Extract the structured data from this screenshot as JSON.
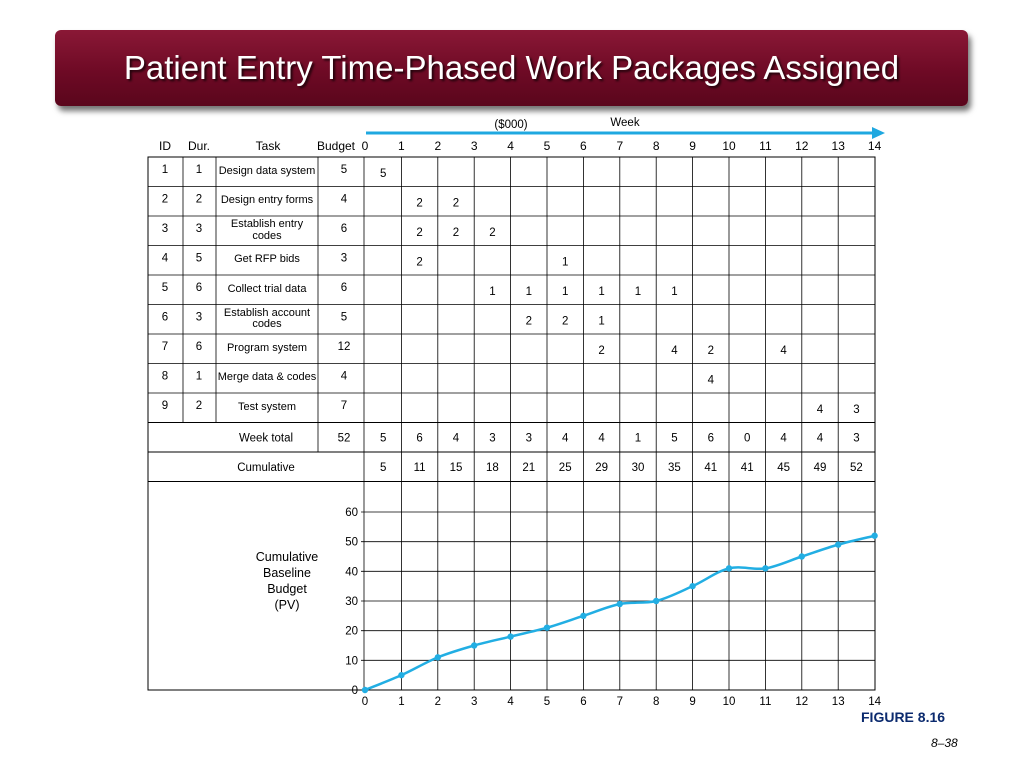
{
  "title": "Patient Entry Time-Phased Work Packages Assigned",
  "units_label": "($000)",
  "week_label": "Week",
  "headers": {
    "id": "ID",
    "dur": "Dur.",
    "task": "Task",
    "budget": "Budget"
  },
  "weeks": [
    "0",
    "1",
    "2",
    "3",
    "4",
    "5",
    "6",
    "7",
    "8",
    "9",
    "10",
    "11",
    "12",
    "13",
    "14"
  ],
  "tasks": [
    {
      "id": "1",
      "dur": "1",
      "task": "Design data system",
      "budget": "5",
      "alloc": {
        "1": "5"
      }
    },
    {
      "id": "2",
      "dur": "2",
      "task": "Design entry forms",
      "budget": "4",
      "alloc": {
        "2": "2",
        "3": "2"
      }
    },
    {
      "id": "3",
      "dur": "3",
      "task": "Establish entry codes",
      "budget": "6",
      "alloc": {
        "2": "2",
        "3": "2",
        "4": "2"
      }
    },
    {
      "id": "4",
      "dur": "5",
      "task": "Get RFP bids",
      "budget": "3",
      "alloc": {
        "2": "2",
        "6": "1"
      }
    },
    {
      "id": "5",
      "dur": "6",
      "task": "Collect trial data",
      "budget": "6",
      "alloc": {
        "4": "1",
        "5": "1",
        "6": "1",
        "7": "1",
        "8": "1",
        "9": "1"
      }
    },
    {
      "id": "6",
      "dur": "3",
      "task": "Establish account codes",
      "budget": "5",
      "alloc": {
        "5": "2",
        "6": "2",
        "7": "1"
      }
    },
    {
      "id": "7",
      "dur": "6",
      "task": "Program system",
      "budget": "12",
      "alloc": {
        "7": "2",
        "9": "4",
        "10": "2",
        "12": "4"
      }
    },
    {
      "id": "8",
      "dur": "1",
      "task": "Merge data & codes",
      "budget": "4",
      "alloc": {
        "10": "4"
      }
    },
    {
      "id": "9",
      "dur": "2",
      "task": "Test system",
      "budget": "7",
      "alloc": {
        "13": "4",
        "14": "3"
      }
    }
  ],
  "week_total_label": "Week total",
  "week_total_budget": "52",
  "week_totals": [
    "5",
    "6",
    "4",
    "3",
    "3",
    "4",
    "4",
    "1",
    "5",
    "6",
    "0",
    "4",
    "4",
    "3"
  ],
  "cumulative_label": "Cumulative",
  "cumulative": [
    "5",
    "11",
    "15",
    "18",
    "21",
    "25",
    "29",
    "30",
    "35",
    "41",
    "41",
    "45",
    "49",
    "52"
  ],
  "chart_label": "Cumulative Baseline Budget (PV)",
  "chart_data": {
    "type": "line",
    "x": [
      0,
      1,
      2,
      3,
      4,
      5,
      6,
      7,
      8,
      9,
      10,
      11,
      12,
      13,
      14
    ],
    "y": [
      0,
      5,
      11,
      15,
      18,
      21,
      25,
      29,
      30,
      35,
      41,
      41,
      45,
      49,
      52
    ],
    "ylim": [
      0,
      60
    ],
    "yticks": [
      "0",
      "10",
      "20",
      "30",
      "40",
      "50",
      "60"
    ],
    "xticks": [
      "0",
      "1",
      "2",
      "3",
      "4",
      "5",
      "6",
      "7",
      "8",
      "9",
      "10",
      "11",
      "12",
      "13",
      "14"
    ],
    "line_color": "#22aee3"
  },
  "figure_label": "FIGURE 8.16",
  "page_number": "8–38"
}
